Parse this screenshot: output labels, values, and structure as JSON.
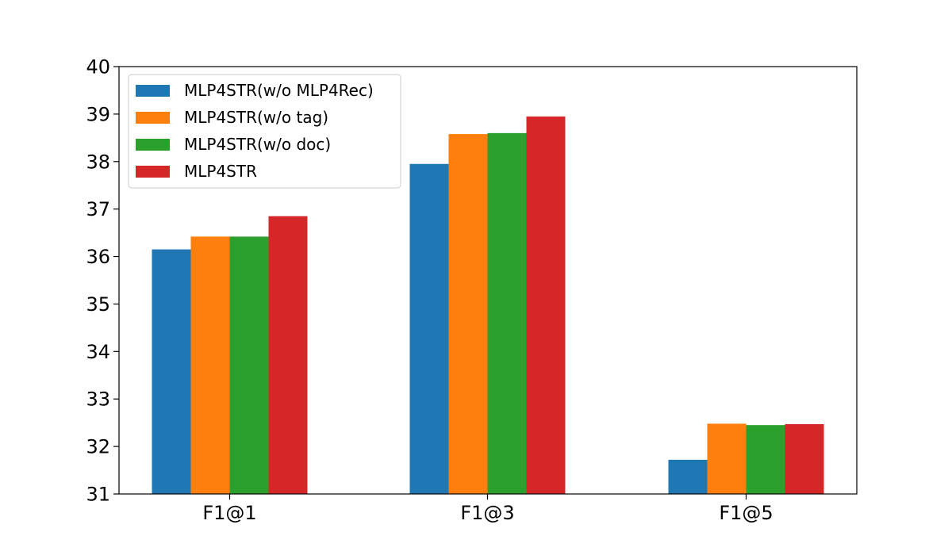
{
  "chart_data": {
    "type": "bar",
    "categories": [
      "F1@1",
      "F1@3",
      "F1@5"
    ],
    "series": [
      {
        "name": "MLP4STR(w/o MLP4Rec)",
        "color": "#1f77b4",
        "values": [
          36.15,
          37.95,
          31.72
        ]
      },
      {
        "name": "MLP4STR(w/o tag)",
        "color": "#ff7f0e",
        "values": [
          36.42,
          38.58,
          32.48
        ]
      },
      {
        "name": "MLP4STR(w/o doc)",
        "color": "#2ca02c",
        "values": [
          36.42,
          38.6,
          32.45
        ]
      },
      {
        "name": "MLP4STR",
        "color": "#d62728",
        "values": [
          36.85,
          38.95,
          32.47
        ]
      }
    ],
    "ylim": [
      31,
      40
    ],
    "yticks": [
      31,
      32,
      33,
      34,
      35,
      36,
      37,
      38,
      39,
      40
    ],
    "legend_position": "top-left",
    "grid": false
  }
}
